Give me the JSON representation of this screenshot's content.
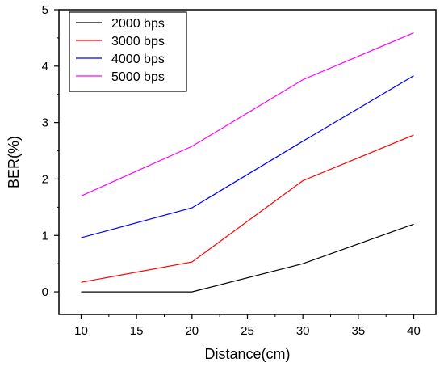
{
  "chart_data": {
    "type": "line",
    "xlabel": "Distance(cm)",
    "ylabel": "BER(%)",
    "xlim": [
      8,
      42
    ],
    "ylim": [
      -0.4,
      5
    ],
    "x_ticks": [
      10,
      15,
      20,
      25,
      30,
      35,
      40
    ],
    "y_ticks": [
      0,
      1,
      2,
      3,
      4,
      5
    ],
    "x": [
      10,
      20,
      30,
      40
    ],
    "series": [
      {
        "name": "2000 bps",
        "color": "#000000",
        "values": [
          0.0,
          0.0,
          0.5,
          1.2
        ]
      },
      {
        "name": "3000 bps",
        "color": "#ff0000",
        "values": [
          0.17,
          0.53,
          1.97,
          2.78
        ]
      },
      {
        "name": "4000 bps",
        "color": "#0000ff",
        "values": [
          0.96,
          1.49,
          2.67,
          3.83
        ]
      },
      {
        "name": "5000 bps",
        "color": "#ff00ff",
        "values": [
          1.7,
          2.58,
          3.76,
          4.59
        ]
      }
    ],
    "grid": false,
    "legend_position": "top-left"
  }
}
